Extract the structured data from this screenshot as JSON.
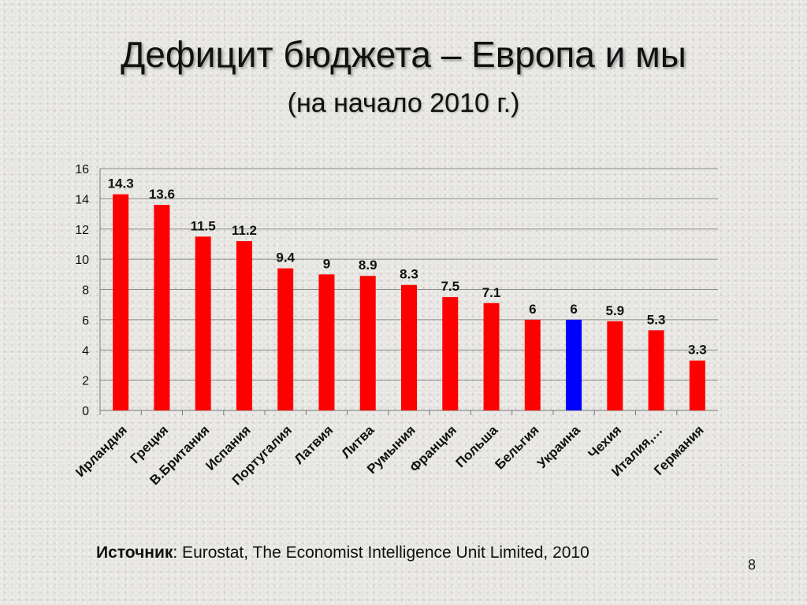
{
  "slide": {
    "title": "Дефицит бюджета – Европа и мы",
    "subtitle": "(на начало 2010 г.)",
    "source_label": "Источник",
    "source_text": ": Eurostat, The Economist Intelligence Unit Limited, 2010",
    "page_number": "8"
  },
  "chart_data": {
    "type": "bar",
    "categories": [
      "Ирландия",
      "Греция",
      "В.Британия",
      "Испания",
      "Португалия",
      "Латвия",
      "Литва",
      "Румыния",
      "Франция",
      "Польша",
      "Бельгия",
      "Украина",
      "Чехия",
      "Италия,…",
      "Германия"
    ],
    "values": [
      14.3,
      13.6,
      11.5,
      11.2,
      9.4,
      9,
      8.9,
      8.3,
      7.5,
      7.1,
      6,
      6,
      5.9,
      5.3,
      3.3
    ],
    "value_labels": [
      "14.3",
      "13.6",
      "11.5",
      "11.2",
      "9.4",
      "9",
      "8.9",
      "8.3",
      "7.5",
      "7.1",
      "6",
      "6",
      "5.9",
      "5.3",
      "3.3"
    ],
    "colors": [
      "#ff0000",
      "#ff0000",
      "#ff0000",
      "#ff0000",
      "#ff0000",
      "#ff0000",
      "#ff0000",
      "#ff0000",
      "#ff0000",
      "#ff0000",
      "#ff0000",
      "#0000ff",
      "#ff0000",
      "#ff0000",
      "#ff0000"
    ],
    "ylim": [
      0,
      16
    ],
    "yticks": [
      "0",
      "2",
      "4",
      "6",
      "8",
      "10",
      "12",
      "14",
      "16"
    ],
    "grid": true,
    "legend": "none",
    "xlabel": "",
    "ylabel": ""
  }
}
